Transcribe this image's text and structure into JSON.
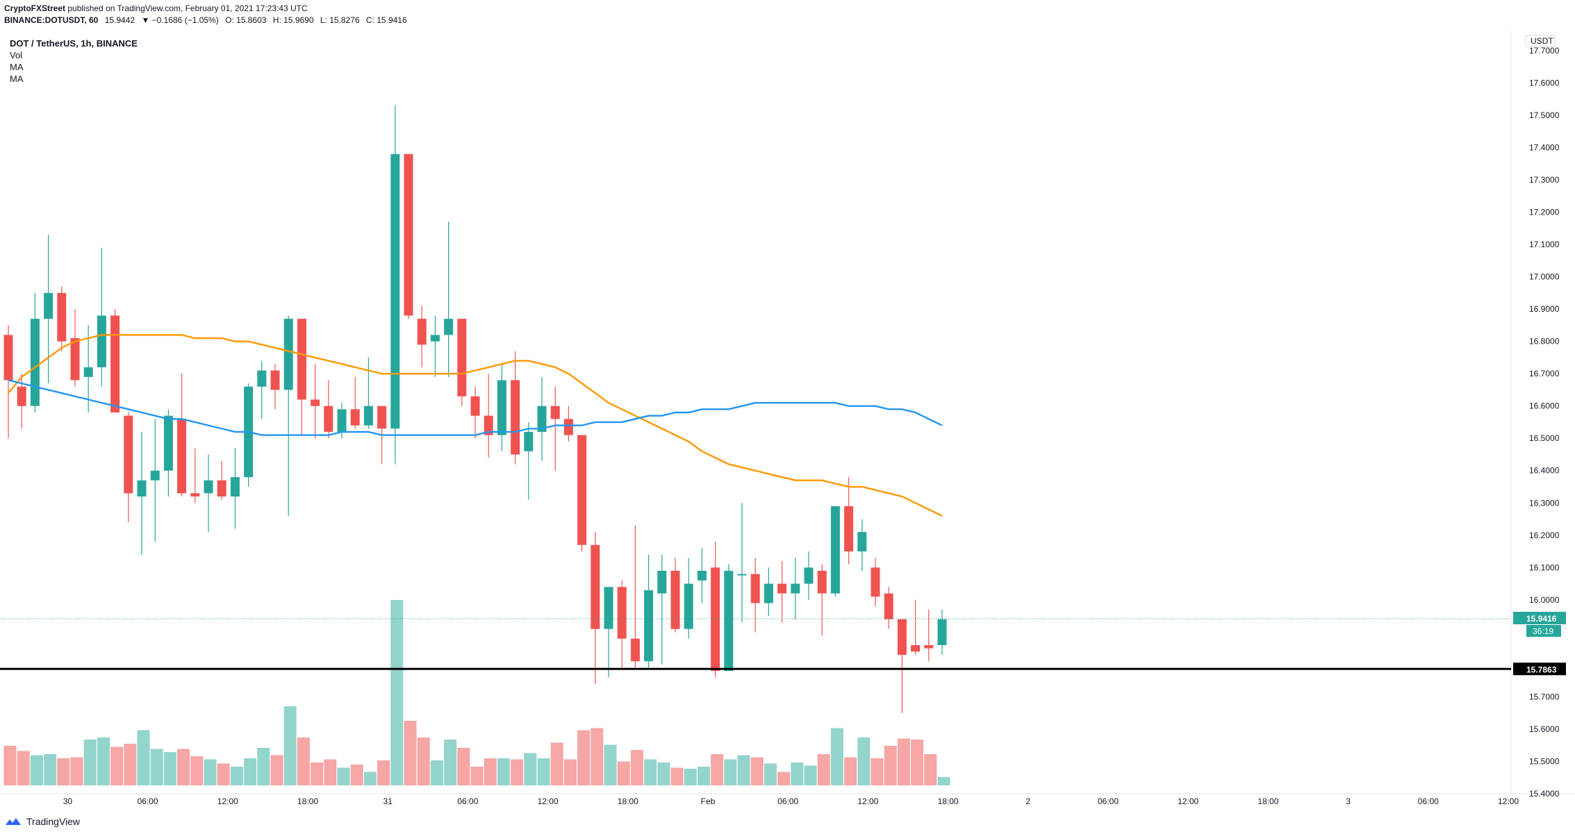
{
  "header": {
    "publisher": "CryptoFXStreet",
    "published_text": "published on TradingView.com, February 01, 2021 17:23:43 UTC",
    "symbol": "BINANCE:DOTUSDT, 60",
    "price": "15.9442",
    "change": "▼ −0.1686 (−1.05%)",
    "open": "O: 15.8603",
    "high": "H: 15.9690",
    "low": "L: 15.8276",
    "close": "C: 15.9416"
  },
  "legend": {
    "title": "DOT / TetherUS, 1h, BINANCE",
    "items": [
      "Vol",
      "MA",
      "MA"
    ]
  },
  "price_axis": {
    "currency": "USDT",
    "ticks": [
      "17.7000",
      "17.6000",
      "17.5000",
      "17.4000",
      "17.3000",
      "17.2000",
      "17.1000",
      "17.0000",
      "16.9000",
      "16.8000",
      "16.7000",
      "16.6000",
      "16.5000",
      "16.4000",
      "16.3000",
      "16.2000",
      "16.1000",
      "16.0000",
      "15.9000",
      "15.8000",
      "15.7000",
      "15.6000",
      "15.5000",
      "15.4000"
    ],
    "last_price_label": "15.9416",
    "countdown_label": "36:19",
    "support_label": "15.7863"
  },
  "time_axis": {
    "labels": [
      "30",
      "06:00",
      "12:00",
      "18:00",
      "31",
      "06:00",
      "12:00",
      "18:00",
      "Feb",
      "06:00",
      "12:00",
      "18:00",
      "2",
      "06:00",
      "12:00",
      "18:00",
      "3",
      "06:00",
      "12:00"
    ]
  },
  "footer": {
    "brand": "TradingView"
  },
  "colors": {
    "up": "#26a69a",
    "down": "#ef5350",
    "up_vol": "#93d4cc",
    "down_vol": "#f5a6a5",
    "ma_short": "#ff9800",
    "ma_long": "#2196f3",
    "support": "#000000",
    "grid": "#ffffff"
  },
  "chart_data": {
    "type": "candlestick",
    "timeframe": "1h",
    "ylim": [
      15.4,
      17.76
    ],
    "support_level": 15.7863,
    "last_price": 15.9416,
    "candles": [
      {
        "o": 16.82,
        "h": 16.85,
        "l": 16.5,
        "c": 16.68,
        "v": 0.38
      },
      {
        "o": 16.66,
        "h": 16.7,
        "l": 16.53,
        "c": 16.6,
        "v": 0.33
      },
      {
        "o": 16.6,
        "h": 16.95,
        "l": 16.58,
        "c": 16.87,
        "v": 0.29
      },
      {
        "o": 16.87,
        "h": 17.13,
        "l": 16.67,
        "c": 16.95,
        "v": 0.3
      },
      {
        "o": 16.95,
        "h": 16.97,
        "l": 16.77,
        "c": 16.8,
        "v": 0.26
      },
      {
        "o": 16.81,
        "h": 16.9,
        "l": 16.66,
        "c": 16.68,
        "v": 0.27
      },
      {
        "o": 16.69,
        "h": 16.85,
        "l": 16.58,
        "c": 16.72,
        "v": 0.44
      },
      {
        "o": 16.72,
        "h": 17.09,
        "l": 16.66,
        "c": 16.88,
        "v": 0.46
      },
      {
        "o": 16.88,
        "h": 16.9,
        "l": 16.58,
        "c": 16.58,
        "v": 0.37
      },
      {
        "o": 16.57,
        "h": 16.58,
        "l": 16.24,
        "c": 16.33,
        "v": 0.4
      },
      {
        "o": 16.32,
        "h": 16.52,
        "l": 16.14,
        "c": 16.37,
        "v": 0.53
      },
      {
        "o": 16.37,
        "h": 16.56,
        "l": 16.18,
        "c": 16.4,
        "v": 0.35
      },
      {
        "o": 16.4,
        "h": 16.59,
        "l": 16.32,
        "c": 16.57,
        "v": 0.32
      },
      {
        "o": 16.56,
        "h": 16.7,
        "l": 16.32,
        "c": 16.33,
        "v": 0.35
      },
      {
        "o": 16.33,
        "h": 16.47,
        "l": 16.3,
        "c": 16.32,
        "v": 0.28
      },
      {
        "o": 16.33,
        "h": 16.45,
        "l": 16.21,
        "c": 16.37,
        "v": 0.25
      },
      {
        "o": 16.37,
        "h": 16.43,
        "l": 16.31,
        "c": 16.32,
        "v": 0.21
      },
      {
        "o": 16.32,
        "h": 16.47,
        "l": 16.22,
        "c": 16.38,
        "v": 0.18
      },
      {
        "o": 16.38,
        "h": 16.67,
        "l": 16.35,
        "c": 16.66,
        "v": 0.26
      },
      {
        "o": 16.66,
        "h": 16.74,
        "l": 16.56,
        "c": 16.71,
        "v": 0.36
      },
      {
        "o": 16.71,
        "h": 16.73,
        "l": 16.59,
        "c": 16.65,
        "v": 0.29
      },
      {
        "o": 16.65,
        "h": 16.88,
        "l": 16.26,
        "c": 16.87,
        "v": 0.76
      },
      {
        "o": 16.87,
        "h": 16.87,
        "l": 16.51,
        "c": 16.62,
        "v": 0.46
      },
      {
        "o": 16.62,
        "h": 16.73,
        "l": 16.5,
        "c": 16.6,
        "v": 0.22
      },
      {
        "o": 16.6,
        "h": 16.68,
        "l": 16.5,
        "c": 16.52,
        "v": 0.25
      },
      {
        "o": 16.52,
        "h": 16.61,
        "l": 16.5,
        "c": 16.59,
        "v": 0.17
      },
      {
        "o": 16.59,
        "h": 16.69,
        "l": 16.53,
        "c": 16.54,
        "v": 0.2
      },
      {
        "o": 16.54,
        "h": 16.75,
        "l": 16.53,
        "c": 16.6,
        "v": 0.13
      },
      {
        "o": 16.6,
        "h": 16.6,
        "l": 16.42,
        "c": 16.53,
        "v": 0.24
      },
      {
        "o": 16.53,
        "h": 17.53,
        "l": 16.42,
        "c": 17.38,
        "v": 1.78
      },
      {
        "o": 17.38,
        "h": 17.38,
        "l": 16.87,
        "c": 16.88,
        "v": 0.62
      },
      {
        "o": 16.87,
        "h": 16.91,
        "l": 16.72,
        "c": 16.79,
        "v": 0.46
      },
      {
        "o": 16.8,
        "h": 16.88,
        "l": 16.69,
        "c": 16.82,
        "v": 0.24
      },
      {
        "o": 16.82,
        "h": 17.17,
        "l": 16.69,
        "c": 16.87,
        "v": 0.44
      },
      {
        "o": 16.87,
        "h": 16.87,
        "l": 16.6,
        "c": 16.63,
        "v": 0.36
      },
      {
        "o": 16.63,
        "h": 16.66,
        "l": 16.5,
        "c": 16.57,
        "v": 0.18
      },
      {
        "o": 16.57,
        "h": 16.7,
        "l": 16.44,
        "c": 16.51,
        "v": 0.26
      },
      {
        "o": 16.51,
        "h": 16.73,
        "l": 16.46,
        "c": 16.68,
        "v": 0.26
      },
      {
        "o": 16.68,
        "h": 16.77,
        "l": 16.42,
        "c": 16.45,
        "v": 0.25
      },
      {
        "o": 16.46,
        "h": 16.55,
        "l": 16.31,
        "c": 16.52,
        "v": 0.31
      },
      {
        "o": 16.52,
        "h": 16.69,
        "l": 16.43,
        "c": 16.6,
        "v": 0.26
      },
      {
        "o": 16.6,
        "h": 16.66,
        "l": 16.4,
        "c": 16.56,
        "v": 0.41
      },
      {
        "o": 16.56,
        "h": 16.6,
        "l": 16.49,
        "c": 16.51,
        "v": 0.25
      },
      {
        "o": 16.51,
        "h": 16.51,
        "l": 16.15,
        "c": 16.17,
        "v": 0.53
      },
      {
        "o": 16.17,
        "h": 16.21,
        "l": 15.74,
        "c": 15.91,
        "v": 0.55
      },
      {
        "o": 15.91,
        "h": 16.03,
        "l": 15.76,
        "c": 16.04,
        "v": 0.39
      },
      {
        "o": 16.04,
        "h": 16.06,
        "l": 15.79,
        "c": 15.88,
        "v": 0.23
      },
      {
        "o": 15.88,
        "h": 16.23,
        "l": 15.79,
        "c": 15.81,
        "v": 0.34
      },
      {
        "o": 15.81,
        "h": 16.14,
        "l": 15.79,
        "c": 16.03,
        "v": 0.25
      },
      {
        "o": 16.02,
        "h": 16.14,
        "l": 15.8,
        "c": 16.09,
        "v": 0.22
      },
      {
        "o": 16.09,
        "h": 16.13,
        "l": 15.9,
        "c": 15.91,
        "v": 0.17
      },
      {
        "o": 15.91,
        "h": 16.13,
        "l": 15.88,
        "c": 16.05,
        "v": 0.16
      },
      {
        "o": 16.06,
        "h": 16.16,
        "l": 15.99,
        "c": 16.09,
        "v": 0.18
      },
      {
        "o": 16.1,
        "h": 16.18,
        "l": 15.76,
        "c": 15.78,
        "v": 0.3
      },
      {
        "o": 15.78,
        "h": 16.11,
        "l": 15.78,
        "c": 16.09,
        "v": 0.25
      },
      {
        "o": 16.08,
        "h": 16.3,
        "l": 15.93,
        "c": 16.08,
        "v": 0.29
      },
      {
        "o": 16.08,
        "h": 16.13,
        "l": 15.9,
        "c": 15.99,
        "v": 0.27
      },
      {
        "o": 15.99,
        "h": 16.1,
        "l": 15.95,
        "c": 16.05,
        "v": 0.21
      },
      {
        "o": 16.05,
        "h": 16.12,
        "l": 15.93,
        "c": 16.02,
        "v": 0.13
      },
      {
        "o": 16.02,
        "h": 16.13,
        "l": 15.94,
        "c": 16.05,
        "v": 0.22
      },
      {
        "o": 16.05,
        "h": 16.15,
        "l": 16.0,
        "c": 16.1,
        "v": 0.19
      },
      {
        "o": 16.09,
        "h": 16.11,
        "l": 15.89,
        "c": 16.02,
        "v": 0.3
      },
      {
        "o": 16.02,
        "h": 16.29,
        "l": 16.01,
        "c": 16.29,
        "v": 0.55
      },
      {
        "o": 16.29,
        "h": 16.38,
        "l": 16.11,
        "c": 16.15,
        "v": 0.27
      },
      {
        "o": 16.15,
        "h": 16.25,
        "l": 16.09,
        "c": 16.21,
        "v": 0.46
      },
      {
        "o": 16.1,
        "h": 16.13,
        "l": 15.98,
        "c": 16.01,
        "v": 0.26
      },
      {
        "o": 16.02,
        "h": 16.04,
        "l": 15.91,
        "c": 15.94,
        "v": 0.38
      },
      {
        "o": 15.94,
        "h": 15.94,
        "l": 15.65,
        "c": 15.83,
        "v": 0.45
      },
      {
        "o": 15.86,
        "h": 16.0,
        "l": 15.83,
        "c": 15.84,
        "v": 0.44
      },
      {
        "o": 15.86,
        "h": 15.97,
        "l": 15.81,
        "c": 15.85,
        "v": 0.3
      },
      {
        "o": 15.86,
        "h": 15.97,
        "l": 15.83,
        "c": 15.94,
        "v": 0.08
      }
    ],
    "moving_averages": [
      {
        "name": "MA",
        "color": "#ff9800",
        "values": [
          16.64,
          16.69,
          16.72,
          16.75,
          16.78,
          16.8,
          16.81,
          16.82,
          16.82,
          16.82,
          16.82,
          16.82,
          16.82,
          16.82,
          16.81,
          16.81,
          16.81,
          16.8,
          16.8,
          16.79,
          16.78,
          16.77,
          16.76,
          16.75,
          16.74,
          16.73,
          16.72,
          16.71,
          16.7,
          16.7,
          16.7,
          16.7,
          16.7,
          16.7,
          16.7,
          16.71,
          16.72,
          16.73,
          16.74,
          16.74,
          16.73,
          16.72,
          16.7,
          16.67,
          16.64,
          16.61,
          16.59,
          16.57,
          16.55,
          16.53,
          16.51,
          16.49,
          16.46,
          16.44,
          16.42,
          16.41,
          16.4,
          16.39,
          16.38,
          16.37,
          16.37,
          16.37,
          16.36,
          16.35,
          16.35,
          16.34,
          16.33,
          16.32,
          16.3,
          16.28,
          16.26
        ]
      },
      {
        "name": "MA",
        "color": "#2196f3",
        "values": [
          16.68,
          16.67,
          16.66,
          16.65,
          16.64,
          16.63,
          16.62,
          16.61,
          16.6,
          16.59,
          16.58,
          16.57,
          16.56,
          16.56,
          16.55,
          16.54,
          16.53,
          16.52,
          16.52,
          16.51,
          16.51,
          16.51,
          16.51,
          16.51,
          16.51,
          16.52,
          16.52,
          16.52,
          16.51,
          16.51,
          16.51,
          16.51,
          16.51,
          16.51,
          16.51,
          16.51,
          16.52,
          16.52,
          16.52,
          16.53,
          16.53,
          16.54,
          16.54,
          16.54,
          16.55,
          16.55,
          16.55,
          16.56,
          16.57,
          16.57,
          16.58,
          16.58,
          16.59,
          16.59,
          16.59,
          16.6,
          16.61,
          16.61,
          16.61,
          16.61,
          16.61,
          16.61,
          16.61,
          16.6,
          16.6,
          16.6,
          16.59,
          16.59,
          16.58,
          16.56,
          16.54
        ]
      }
    ]
  }
}
